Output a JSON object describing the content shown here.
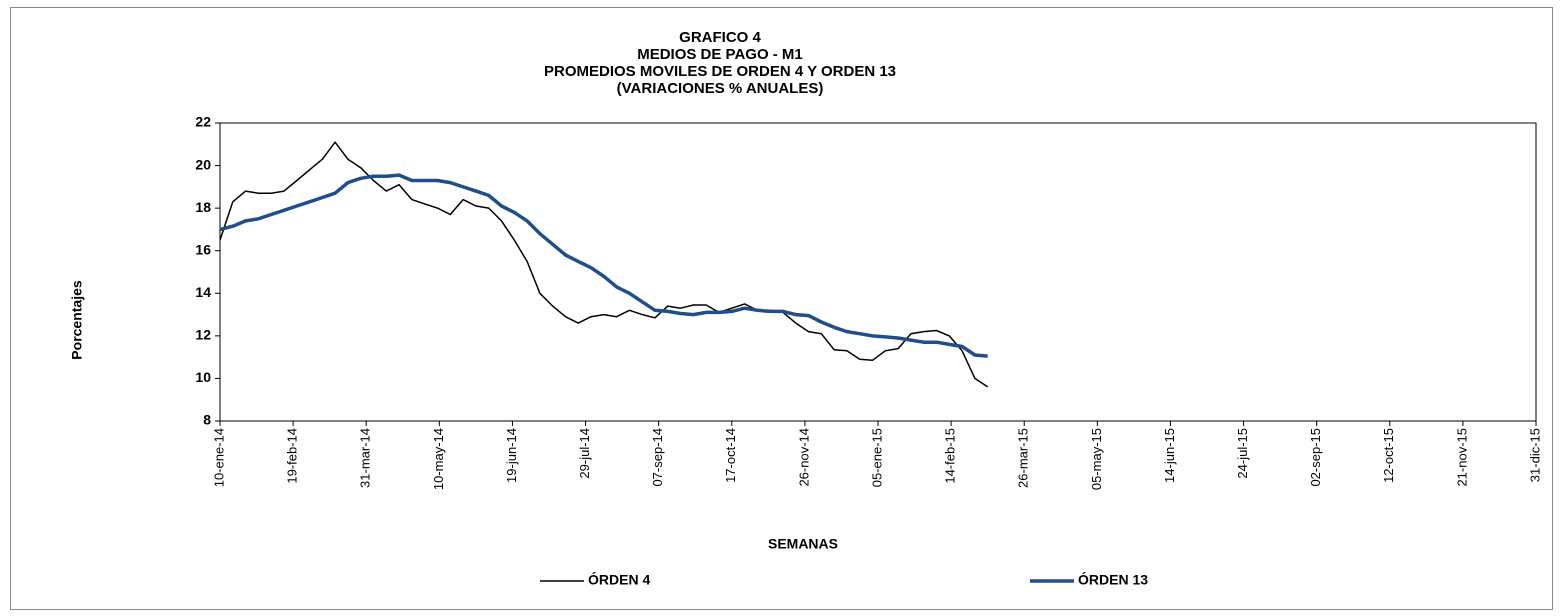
{
  "chart_data": {
    "type": "line",
    "title": [
      "GRAFICO 4",
      "MEDIOS DE PAGO - M1",
      "PROMEDIOS MOVILES DE ORDEN 4 Y ORDEN 13",
      "(VARIACIONES % ANUALES)"
    ],
    "xlabel": "SEMANAS",
    "ylabel": "Porcentajes",
    "x": [
      "2014-01-10",
      "2014-01-17",
      "2014-01-24",
      "2014-01-31",
      "2014-02-07",
      "2014-02-14",
      "2014-02-21",
      "2014-02-28",
      "2014-03-07",
      "2014-03-14",
      "2014-03-21",
      "2014-03-28",
      "2014-04-04",
      "2014-04-11",
      "2014-04-18",
      "2014-04-25",
      "2014-05-02",
      "2014-05-09",
      "2014-05-16",
      "2014-05-23",
      "2014-05-30",
      "2014-06-06",
      "2014-06-13",
      "2014-06-20",
      "2014-06-27",
      "2014-07-04",
      "2014-07-11",
      "2014-07-18",
      "2014-07-25",
      "2014-08-01",
      "2014-08-08",
      "2014-08-15",
      "2014-08-22",
      "2014-08-29",
      "2014-09-05",
      "2014-09-12",
      "2014-09-19",
      "2014-09-26",
      "2014-10-03",
      "2014-10-10",
      "2014-10-17",
      "2014-10-24",
      "2014-10-31",
      "2014-11-07",
      "2014-11-14",
      "2014-11-21",
      "2014-11-28",
      "2014-12-05",
      "2014-12-12",
      "2014-12-19",
      "2014-12-26",
      "2015-01-02",
      "2015-01-09",
      "2015-01-16",
      "2015-01-23",
      "2015-01-30",
      "2015-02-06",
      "2015-02-13",
      "2015-02-20",
      "2015-02-27",
      "2015-03-06"
    ],
    "series": [
      {
        "name": "ÓRDEN 4",
        "color": "#000000",
        "width": 1.5,
        "values": [
          16.5,
          18.3,
          18.8,
          18.7,
          18.7,
          18.8,
          19.3,
          19.8,
          20.3,
          21.1,
          20.3,
          19.9,
          19.3,
          18.8,
          19.1,
          18.4,
          18.2,
          18.0,
          17.7,
          18.4,
          18.1,
          18.0,
          17.4,
          16.5,
          15.5,
          14.0,
          13.4,
          12.9,
          12.6,
          12.9,
          13.0,
          12.9,
          13.2,
          13.0,
          12.85,
          13.4,
          13.3,
          13.45,
          13.45,
          13.1,
          13.3,
          13.5,
          13.2,
          13.2,
          13.1,
          12.6,
          12.2,
          12.1,
          11.35,
          11.3,
          10.9,
          10.85,
          11.3,
          11.4,
          12.1,
          12.2,
          12.25,
          12.0,
          11.3,
          10.0,
          9.6
        ]
      },
      {
        "name": "ÓRDEN 13",
        "color": "#1f4e8c",
        "width": 3.5,
        "values": [
          17.0,
          17.15,
          17.4,
          17.5,
          17.7,
          17.9,
          18.1,
          18.3,
          18.5,
          18.7,
          19.2,
          19.4,
          19.5,
          19.5,
          19.55,
          19.3,
          19.3,
          19.3,
          19.2,
          19.0,
          18.8,
          18.6,
          18.1,
          17.8,
          17.4,
          16.8,
          16.3,
          15.8,
          15.5,
          15.2,
          14.8,
          14.3,
          14.0,
          13.6,
          13.2,
          13.15,
          13.05,
          13.0,
          13.1,
          13.1,
          13.15,
          13.3,
          13.2,
          13.15,
          13.15,
          13.0,
          12.95,
          12.65,
          12.4,
          12.2,
          12.1,
          12.0,
          11.95,
          11.9,
          11.8,
          11.7,
          11.7,
          11.6,
          11.5,
          11.1,
          11.05
        ]
      }
    ],
    "xlim": [
      "2014-01-10",
      "2015-12-31"
    ],
    "xticks": [
      {
        "value": "2014-01-10",
        "label": "10-ene-14"
      },
      {
        "value": "2014-02-19",
        "label": "19-feb-14"
      },
      {
        "value": "2014-03-31",
        "label": "31-mar-14"
      },
      {
        "value": "2014-05-10",
        "label": "10-may-14"
      },
      {
        "value": "2014-06-19",
        "label": "19-jun-14"
      },
      {
        "value": "2014-07-29",
        "label": "29-jul-14"
      },
      {
        "value": "2014-09-07",
        "label": "07-sep-14"
      },
      {
        "value": "2014-10-17",
        "label": "17-oct-14"
      },
      {
        "value": "2014-11-26",
        "label": "26-nov-14"
      },
      {
        "value": "2015-01-05",
        "label": "05-ene-15"
      },
      {
        "value": "2015-02-14",
        "label": "14-feb-15"
      },
      {
        "value": "2015-03-26",
        "label": "26-mar-15"
      },
      {
        "value": "2015-05-05",
        "label": "05-may-15"
      },
      {
        "value": "2015-06-14",
        "label": "14-jun-15"
      },
      {
        "value": "2015-07-24",
        "label": "24-jul-15"
      },
      {
        "value": "2015-09-02",
        "label": "02-sep-15"
      },
      {
        "value": "2015-10-12",
        "label": "12-oct-15"
      },
      {
        "value": "2015-11-21",
        "label": "21-nov-15"
      },
      {
        "value": "2015-12-31",
        "label": "31-dic-15"
      }
    ],
    "ylim": [
      8,
      22
    ],
    "yticks": [
      8,
      10,
      12,
      14,
      16,
      18,
      20,
      22
    ],
    "grid": false,
    "legend": "bottom"
  }
}
